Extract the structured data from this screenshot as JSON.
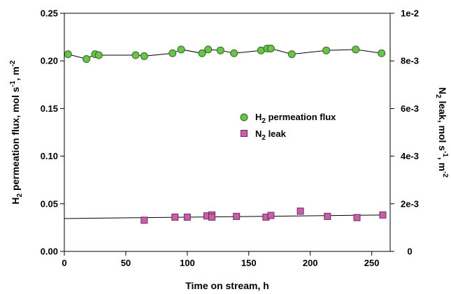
{
  "chart_data": {
    "type": "scatter",
    "xlabel": "Time on stream, h",
    "ylabel_left": {
      "main": "H",
      "sub": "2",
      "rest": " permeation flux, mol s",
      "sup1": "-1",
      "mid": ", m",
      "sup2": "-2"
    },
    "ylabel_right": {
      "main": "N",
      "sub": "2",
      "rest": " leak, mol s",
      "sup1": "-1",
      "mid": ", m",
      "sup2": "-2"
    },
    "xlim": [
      0,
      265
    ],
    "ylim_left": [
      0,
      0.25
    ],
    "ylim_right": [
      0,
      0.01
    ],
    "x_ticks": [
      0,
      50,
      100,
      150,
      200,
      250
    ],
    "x_tick_labels": [
      "0",
      "50",
      "100",
      "150",
      "200",
      "250"
    ],
    "y_left_ticks": [
      0,
      0.05,
      0.1,
      0.15,
      0.2,
      0.25
    ],
    "y_left_tick_labels": [
      "0.00",
      "0.05",
      "0.10",
      "0.15",
      "0.20",
      "0.25"
    ],
    "y_right_ticks": [
      0,
      0.002,
      0.004,
      0.006,
      0.008,
      0.01
    ],
    "y_right_tick_labels": [
      "0",
      "2e-3",
      "4e-3",
      "6e-3",
      "8e-3",
      "1e-2"
    ],
    "legend_position": "right-center",
    "series": [
      {
        "name": {
          "main": "H",
          "sub": "2",
          "rest": " permeation flux"
        },
        "axis": "left",
        "marker": "circle",
        "color": "#6cc24a",
        "stroke": "#2d6a1e",
        "connected": true,
        "x": [
          3,
          18,
          25,
          28,
          58,
          65,
          88,
          95,
          112,
          117,
          127,
          138,
          160,
          165,
          168,
          185,
          213,
          237,
          258
        ],
        "y": [
          0.207,
          0.202,
          0.207,
          0.206,
          0.206,
          0.205,
          0.208,
          0.212,
          0.208,
          0.212,
          0.211,
          0.208,
          0.211,
          0.213,
          0.213,
          0.207,
          0.211,
          0.212,
          0.208
        ]
      },
      {
        "name": {
          "main": "N",
          "sub": "2",
          "rest": " leak"
        },
        "axis": "right",
        "marker": "square",
        "color": "#c85fa8",
        "stroke": "#6a2a58",
        "connected": false,
        "x": [
          65,
          90,
          100,
          116,
          120,
          120,
          140,
          164,
          168,
          192,
          214,
          238,
          259
        ],
        "y": [
          0.00131,
          0.00144,
          0.00144,
          0.00149,
          0.00153,
          0.00144,
          0.00147,
          0.00144,
          0.00151,
          0.00169,
          0.00147,
          0.00142,
          0.00153
        ]
      }
    ],
    "trend_line": {
      "axis": "right",
      "x": [
        0,
        260
      ],
      "y": [
        0.00138,
        0.00153
      ]
    }
  }
}
